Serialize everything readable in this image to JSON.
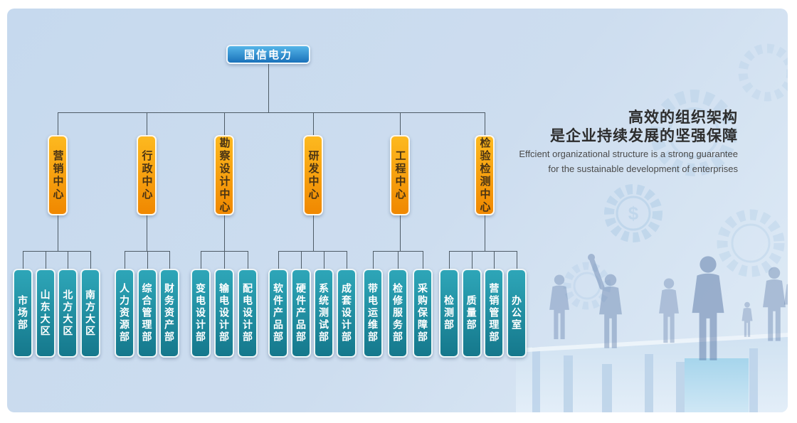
{
  "root": {
    "label": "国信电力"
  },
  "tagline": {
    "zh_line1": "高效的组织架构",
    "zh_line2": "是企业持续发展的坚强保障",
    "en_line1": "Effcient organizational structure is a strong guarantee",
    "en_line2": "for the sustainable development of enterprises"
  },
  "centers": [
    {
      "label": "营销中心",
      "departments": [
        "市场部",
        "山东大区",
        "北方大区",
        "南方大区"
      ]
    },
    {
      "label": "行政中心",
      "departments": [
        "人力资源部",
        "综合管理部",
        "财务资产部"
      ]
    },
    {
      "label": "勘察设计中心",
      "departments": [
        "变电设计部",
        "输电设计部",
        "配电设计部"
      ]
    },
    {
      "label": "研发中心",
      "departments": [
        "软件产品部",
        "硬件产品部",
        "系统测试部",
        "成套设计部"
      ]
    },
    {
      "label": "工程中心",
      "departments": [
        "带电运维部",
        "检修服务部",
        "采购保障部"
      ]
    },
    {
      "label": "检验检测中心",
      "departments": [
        "检测部",
        "质量部",
        "营销管理部",
        "办公室"
      ]
    }
  ],
  "decor": {
    "dollar_sign": "$"
  },
  "colors": {
    "panel_bg": "#c6d9ee",
    "root_box_top": "#55b5e8",
    "root_box_bottom": "#1a72ba",
    "center_box_top": "#fdb91f",
    "center_box_bottom": "#f08800",
    "center_text": "#4a3415",
    "dept_box_top": "#2ea6b8",
    "dept_box_bottom": "#15788c",
    "dept_text": "#ffffff",
    "connector": "#4e5b66",
    "heading_text": "#2d2d2d",
    "subtext": "#4a4a4a"
  }
}
